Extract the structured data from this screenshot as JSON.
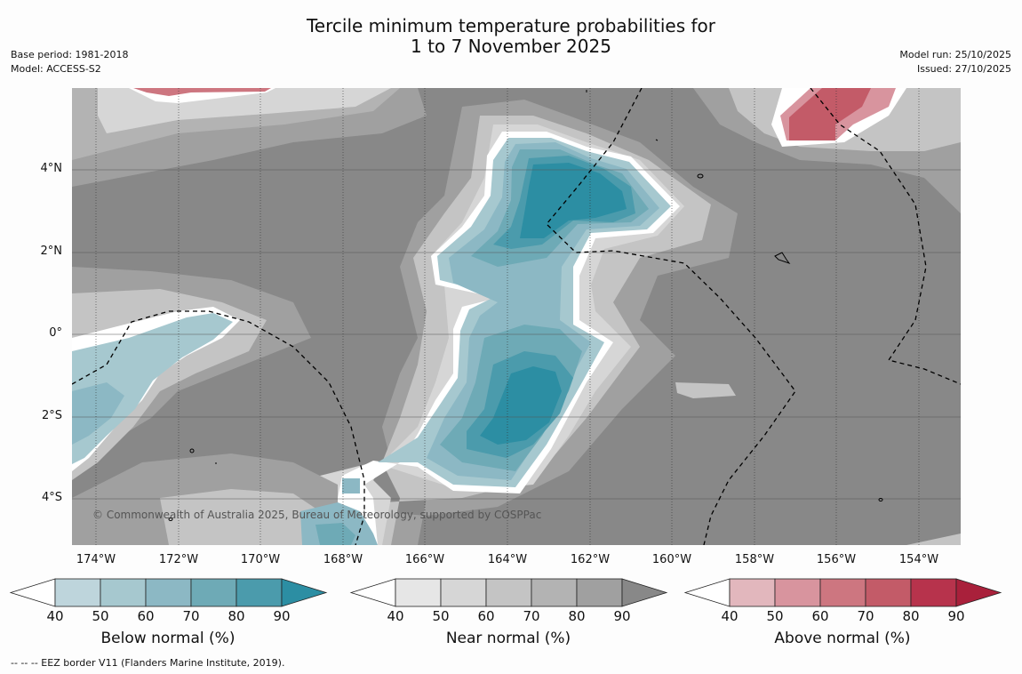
{
  "header": {
    "title_line1": "Tercile minimum temperature probabilities for",
    "title_line2": "1 to 7 November 2025",
    "base_period": "Base period: 1981-2018",
    "model": "Model: ACCESS-S2",
    "model_run": "Model run: 25/10/2025",
    "issued": "Issued: 27/10/2025"
  },
  "map": {
    "lat_labels": [
      "4°N",
      "2°N",
      "0°",
      "2°S",
      "4°S"
    ],
    "lon_labels": [
      "174°W",
      "172°W",
      "170°W",
      "168°W",
      "166°W",
      "164°W",
      "162°W",
      "160°W",
      "158°W",
      "156°W",
      "154°W"
    ],
    "copyright": "© Commonwealth of Australia 2025, Bureau of Meteorology, supported by COSPPac"
  },
  "colorbars": {
    "ticks": [
      "40",
      "50",
      "60",
      "70",
      "80",
      "90"
    ],
    "below": {
      "label": "Below normal (%)",
      "colors": [
        "#bed5dc",
        "#a6c8cf",
        "#8cb8c4",
        "#6eaab6",
        "#4b9bac",
        "#2c8ea3"
      ]
    },
    "near": {
      "label": "Near normal (%)",
      "colors": [
        "#e6e6e6",
        "#d6d6d6",
        "#c4c4c4",
        "#b3b3b3",
        "#a0a0a0",
        "#888888"
      ]
    },
    "above": {
      "label": "Above normal (%)",
      "colors": [
        "#e2b7bd",
        "#d8949e",
        "#cd7680",
        "#c35b68",
        "#b7334c",
        "#a9203b"
      ]
    }
  },
  "footer": {
    "legend_text": "--  --  -- EEZ border V11 (Flanders Marine Institute, 2019)."
  }
}
